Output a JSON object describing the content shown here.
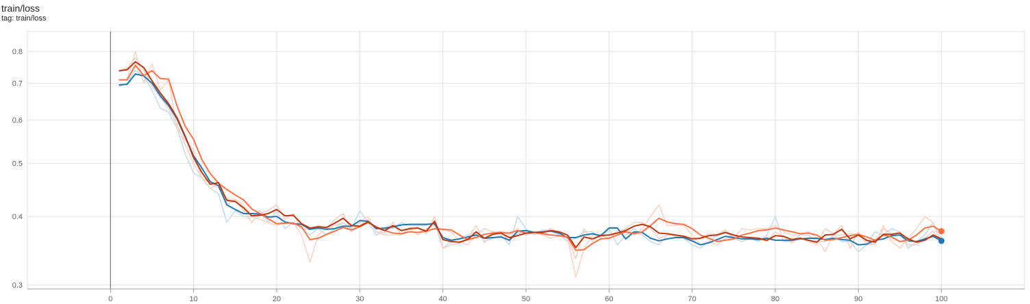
{
  "header": {
    "title": "train/loss",
    "subtitle": "tag: train/loss"
  },
  "chart_data": {
    "type": "line",
    "title": "train/loss",
    "xlabel": "",
    "ylabel": "",
    "xlim": [
      -10,
      110
    ],
    "ylim": [
      0.295,
      0.87
    ],
    "y_scale": "log",
    "grid": true,
    "x_ticks": [
      0,
      10,
      20,
      30,
      40,
      50,
      60,
      70,
      80,
      90,
      100
    ],
    "y_ticks": [
      0.3,
      0.4,
      0.5,
      0.6,
      0.7,
      0.8
    ],
    "series": [
      {
        "name": "",
        "color": "#1f77b4",
        "raw_color": "#c5dcef",
        "end_marker": true,
        "x": [
          1,
          2,
          3,
          4,
          5,
          6,
          7,
          8,
          9,
          10,
          11,
          12,
          13,
          14,
          15,
          16,
          17,
          18,
          19,
          20,
          21,
          22,
          23,
          24,
          25,
          26,
          27,
          28,
          29,
          30,
          31,
          32,
          33,
          34,
          35,
          36,
          37,
          38,
          39,
          40,
          41,
          42,
          43,
          44,
          45,
          46,
          47,
          48,
          49,
          50,
          51,
          52,
          53,
          54,
          55,
          56,
          57,
          58,
          59,
          60,
          61,
          62,
          63,
          64,
          65,
          66,
          67,
          68,
          69,
          70,
          71,
          72,
          73,
          74,
          75,
          76,
          77,
          78,
          79,
          80,
          81,
          82,
          83,
          84,
          85,
          86,
          87,
          88,
          89,
          90,
          91,
          92,
          93,
          94,
          95,
          96,
          97,
          98,
          99,
          100
        ],
        "smoothed": [
          0.695,
          0.697,
          0.728,
          0.722,
          0.7,
          0.664,
          0.637,
          0.603,
          0.558,
          0.516,
          0.49,
          0.463,
          0.455,
          0.42,
          0.412,
          0.405,
          0.405,
          0.404,
          0.399,
          0.4,
          0.391,
          0.388,
          0.387,
          0.379,
          0.381,
          0.379,
          0.38,
          0.384,
          0.384,
          0.393,
          0.392,
          0.38,
          0.381,
          0.383,
          0.386,
          0.387,
          0.387,
          0.387,
          0.388,
          0.366,
          0.362,
          0.364,
          0.367,
          0.37,
          0.365,
          0.366,
          0.367,
          0.362,
          0.376,
          0.377,
          0.374,
          0.375,
          0.376,
          0.373,
          0.366,
          0.366,
          0.37,
          0.372,
          0.369,
          0.381,
          0.381,
          0.364,
          0.375,
          0.374,
          0.365,
          0.361,
          0.364,
          0.366,
          0.366,
          0.361,
          0.355,
          0.358,
          0.363,
          0.368,
          0.366,
          0.364,
          0.364,
          0.363,
          0.365,
          0.362,
          0.362,
          0.362,
          0.364,
          0.365,
          0.365,
          0.363,
          0.365,
          0.363,
          0.362,
          0.355,
          0.356,
          0.362,
          0.364,
          0.369,
          0.37,
          0.361,
          0.36,
          0.364,
          0.368,
          0.361
        ],
        "raw": [
          0.69,
          0.7,
          0.74,
          0.72,
          0.68,
          0.63,
          0.62,
          0.58,
          0.52,
          0.48,
          0.47,
          0.45,
          0.44,
          0.39,
          0.41,
          0.4,
          0.4,
          0.41,
          0.39,
          0.41,
          0.38,
          0.39,
          0.38,
          0.37,
          0.38,
          0.37,
          0.38,
          0.39,
          0.38,
          0.41,
          0.39,
          0.37,
          0.38,
          0.38,
          0.39,
          0.385,
          0.385,
          0.385,
          0.39,
          0.35,
          0.36,
          0.365,
          0.37,
          0.375,
          0.36,
          0.365,
          0.37,
          0.355,
          0.4,
          0.38,
          0.37,
          0.378,
          0.377,
          0.37,
          0.36,
          0.365,
          0.375,
          0.375,
          0.365,
          0.38,
          0.355,
          0.37,
          0.38,
          0.37,
          0.36,
          0.355,
          0.37,
          0.37,
          0.365,
          0.355,
          0.35,
          0.36,
          0.37,
          0.375,
          0.365,
          0.36,
          0.365,
          0.36,
          0.37,
          0.4,
          0.36,
          0.36,
          0.37,
          0.37,
          0.36,
          0.36,
          0.37,
          0.36,
          0.36,
          0.345,
          0.355,
          0.375,
          0.37,
          0.38,
          0.375,
          0.35,
          0.36,
          0.37,
          0.39,
          0.355
        ]
      },
      {
        "name": "",
        "color": "#ff7043",
        "raw_color": "#ffd3c5",
        "end_marker": true,
        "x": [
          1,
          2,
          3,
          4,
          5,
          6,
          7,
          8,
          9,
          10,
          11,
          12,
          13,
          14,
          15,
          16,
          17,
          18,
          19,
          20,
          21,
          22,
          23,
          24,
          25,
          26,
          27,
          28,
          29,
          30,
          31,
          32,
          33,
          34,
          35,
          36,
          37,
          38,
          39,
          40,
          41,
          42,
          43,
          44,
          45,
          46,
          47,
          48,
          49,
          50,
          51,
          52,
          53,
          54,
          55,
          56,
          57,
          58,
          59,
          60,
          61,
          62,
          63,
          64,
          65,
          66,
          67,
          68,
          69,
          70,
          71,
          72,
          73,
          74,
          75,
          76,
          77,
          78,
          79,
          80,
          81,
          82,
          83,
          84,
          85,
          86,
          87,
          88,
          89,
          90,
          91,
          92,
          93,
          94,
          95,
          96,
          97,
          98,
          99,
          100
        ],
        "smoothed": [
          0.71,
          0.71,
          0.755,
          0.723,
          0.738,
          0.714,
          0.712,
          0.637,
          0.584,
          0.553,
          0.508,
          0.479,
          0.46,
          0.448,
          0.438,
          0.429,
          0.413,
          0.405,
          0.396,
          0.388,
          0.389,
          0.389,
          0.383,
          0.363,
          0.365,
          0.371,
          0.376,
          0.382,
          0.378,
          0.383,
          0.39,
          0.383,
          0.377,
          0.373,
          0.372,
          0.375,
          0.374,
          0.376,
          0.38,
          0.379,
          0.378,
          0.37,
          0.363,
          0.366,
          0.371,
          0.373,
          0.374,
          0.373,
          0.377,
          0.373,
          0.374,
          0.372,
          0.37,
          0.369,
          0.367,
          0.347,
          0.348,
          0.357,
          0.364,
          0.365,
          0.37,
          0.375,
          0.372,
          0.375,
          0.385,
          0.397,
          0.391,
          0.388,
          0.387,
          0.38,
          0.37,
          0.365,
          0.36,
          0.362,
          0.364,
          0.37,
          0.373,
          0.377,
          0.378,
          0.381,
          0.378,
          0.375,
          0.372,
          0.373,
          0.37,
          0.362,
          0.363,
          0.366,
          0.369,
          0.371,
          0.367,
          0.362,
          0.37,
          0.367,
          0.36,
          0.362,
          0.37,
          0.381,
          0.384,
          0.376
        ],
        "raw": [
          0.71,
          0.71,
          0.8,
          0.7,
          0.76,
          0.68,
          0.71,
          0.58,
          0.55,
          0.53,
          0.47,
          0.46,
          0.45,
          0.43,
          0.43,
          0.42,
          0.4,
          0.395,
          0.39,
          0.385,
          0.39,
          0.39,
          0.37,
          0.33,
          0.37,
          0.38,
          0.385,
          0.39,
          0.375,
          0.39,
          0.4,
          0.375,
          0.37,
          0.37,
          0.37,
          0.38,
          0.37,
          0.38,
          0.385,
          0.378,
          0.375,
          0.36,
          0.355,
          0.37,
          0.38,
          0.375,
          0.375,
          0.37,
          0.38,
          0.37,
          0.375,
          0.37,
          0.365,
          0.368,
          0.365,
          0.31,
          0.35,
          0.37,
          0.37,
          0.365,
          0.375,
          0.38,
          0.37,
          0.38,
          0.4,
          0.42,
          0.385,
          0.385,
          0.385,
          0.37,
          0.355,
          0.36,
          0.355,
          0.365,
          0.366,
          0.38,
          0.378,
          0.38,
          0.38,
          0.385,
          0.375,
          0.37,
          0.37,
          0.375,
          0.365,
          0.345,
          0.37,
          0.37,
          0.372,
          0.372,
          0.36,
          0.355,
          0.385,
          0.36,
          0.35,
          0.365,
          0.38,
          0.4,
          0.39,
          0.365
        ]
      },
      {
        "name": "",
        "color": "#bf360c",
        "raw_color": "#f6d0c4",
        "end_marker": false,
        "x": [
          1,
          2,
          3,
          4,
          5,
          6,
          7,
          8,
          9,
          10,
          11,
          12,
          13,
          14,
          15,
          16,
          17,
          18,
          19,
          20,
          21,
          22,
          23,
          24,
          25,
          26,
          27,
          28,
          29,
          30,
          31,
          32,
          33,
          34,
          35,
          36,
          37,
          38,
          39,
          40,
          41,
          42,
          43,
          44,
          45,
          46,
          47,
          48,
          49,
          50,
          51,
          52,
          53,
          54,
          55,
          56,
          57,
          58,
          59,
          60,
          61,
          62,
          63,
          64,
          65,
          66,
          67,
          68,
          69,
          70,
          71,
          72,
          73,
          74,
          75,
          76,
          77,
          78,
          79,
          80,
          81,
          82,
          83,
          84,
          85,
          86,
          87,
          88,
          89,
          90,
          91,
          92,
          93,
          94,
          95,
          96,
          97,
          98,
          99,
          100
        ],
        "smoothed": [
          0.737,
          0.741,
          0.766,
          0.748,
          0.707,
          0.672,
          0.642,
          0.606,
          0.56,
          0.512,
          0.481,
          0.458,
          0.461,
          0.428,
          0.426,
          0.415,
          0.401,
          0.402,
          0.405,
          0.412,
          0.401,
          0.402,
          0.388,
          0.381,
          0.383,
          0.382,
          0.389,
          0.397,
          0.385,
          0.384,
          0.391,
          0.382,
          0.377,
          0.385,
          0.377,
          0.38,
          0.381,
          0.376,
          0.392,
          0.363,
          0.36,
          0.359,
          0.363,
          0.375,
          0.365,
          0.371,
          0.373,
          0.366,
          0.369,
          0.373,
          0.374,
          0.374,
          0.377,
          0.375,
          0.37,
          0.351,
          0.367,
          0.364,
          0.369,
          0.37,
          0.373,
          0.377,
          0.384,
          0.387,
          0.383,
          0.373,
          0.372,
          0.37,
          0.368,
          0.364,
          0.365,
          0.369,
          0.37,
          0.374,
          0.37,
          0.367,
          0.366,
          0.365,
          0.362,
          0.369,
          0.368,
          0.363,
          0.365,
          0.362,
          0.359,
          0.37,
          0.371,
          0.379,
          0.364,
          0.37,
          0.362,
          0.359,
          0.371,
          0.371,
          0.373,
          0.364,
          0.359,
          0.362,
          0.37,
          0.364
        ],
        "raw": [
          0.74,
          0.745,
          0.78,
          0.74,
          0.69,
          0.66,
          0.63,
          0.59,
          0.54,
          0.5,
          0.47,
          0.45,
          0.46,
          0.42,
          0.43,
          0.41,
          0.39,
          0.405,
          0.41,
          0.42,
          0.395,
          0.405,
          0.38,
          0.378,
          0.385,
          0.38,
          0.395,
          0.405,
          0.375,
          0.385,
          0.395,
          0.375,
          0.373,
          0.39,
          0.37,
          0.382,
          0.382,
          0.372,
          0.4,
          0.35,
          0.355,
          0.357,
          0.365,
          0.385,
          0.358,
          0.375,
          0.375,
          0.36,
          0.372,
          0.376,
          0.375,
          0.375,
          0.38,
          0.373,
          0.366,
          0.335,
          0.38,
          0.36,
          0.372,
          0.37,
          0.375,
          0.38,
          0.39,
          0.39,
          0.38,
          0.365,
          0.37,
          0.368,
          0.366,
          0.36,
          0.366,
          0.372,
          0.371,
          0.378,
          0.366,
          0.364,
          0.365,
          0.364,
          0.36,
          0.375,
          0.367,
          0.358,
          0.366,
          0.36,
          0.356,
          0.38,
          0.372,
          0.385,
          0.35,
          0.375,
          0.355,
          0.356,
          0.38,
          0.372,
          0.375,
          0.355,
          0.355,
          0.365,
          0.376,
          0.358
        ]
      }
    ]
  }
}
